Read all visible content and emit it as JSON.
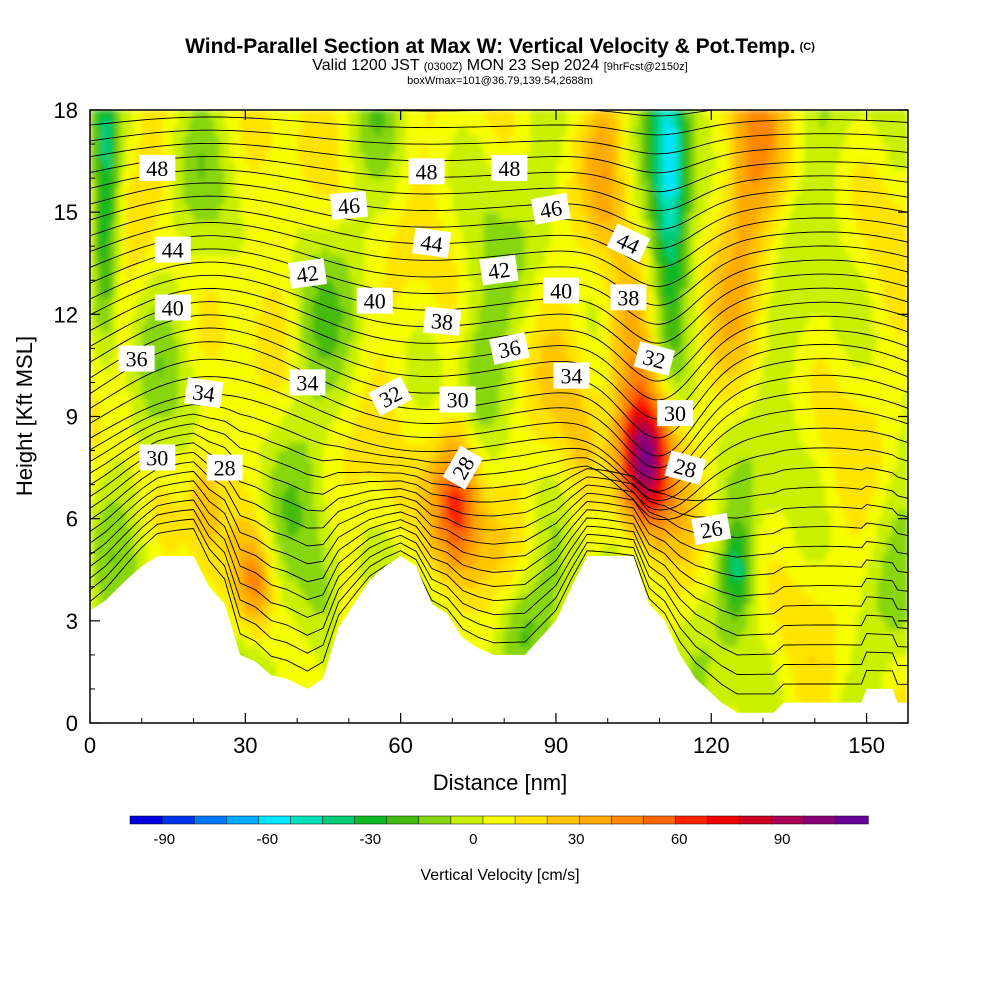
{
  "title": "Wind-Parallel Section at Max W: Vertical Velocity & Pot.Temp.",
  "copyright": "(C)",
  "subtitle_main": "Valid 1200 JST",
  "subtitle_z": "(0300Z)",
  "subtitle_date": "MON 23 Sep 2024",
  "subtitle_fcst": "[9hrFcst@2150z]",
  "subtitle2": "boxWmax=101@36.79,139.54,2688m",
  "chart_data": {
    "type": "heatmap",
    "xlabel": "Distance [nm]",
    "ylabel": "Height [Kft MSL]",
    "xlim": [
      0,
      158
    ],
    "ylim": [
      0,
      18
    ],
    "x_ticks": [
      0,
      30,
      60,
      90,
      120,
      150
    ],
    "y_ticks": [
      0,
      3,
      6,
      9,
      12,
      15,
      18
    ],
    "terrain_top_kft": [
      [
        0,
        3.3
      ],
      [
        3,
        3.6
      ],
      [
        7,
        4.2
      ],
      [
        10,
        4.6
      ],
      [
        13,
        4.9
      ],
      [
        20,
        4.9
      ],
      [
        23,
        4.0
      ],
      [
        26,
        3.5
      ],
      [
        29,
        2.0
      ],
      [
        32,
        1.8
      ],
      [
        35,
        1.4
      ],
      [
        38,
        1.3
      ],
      [
        42,
        1.0
      ],
      [
        45,
        1.3
      ],
      [
        48,
        2.8
      ],
      [
        51,
        3.5
      ],
      [
        54,
        4.2
      ],
      [
        57,
        4.6
      ],
      [
        60,
        4.9
      ],
      [
        63,
        4.6
      ],
      [
        66,
        3.5
      ],
      [
        69,
        3.2
      ],
      [
        72,
        2.5
      ],
      [
        75,
        2.2
      ],
      [
        78,
        2.0
      ],
      [
        84,
        2.0
      ],
      [
        87,
        2.5
      ],
      [
        90,
        3.0
      ],
      [
        93,
        4.0
      ],
      [
        96,
        4.9
      ],
      [
        105,
        4.9
      ],
      [
        108,
        3.5
      ],
      [
        111,
        3.0
      ],
      [
        114,
        2.0
      ],
      [
        117,
        1.3
      ],
      [
        122,
        0.6
      ],
      [
        125,
        0.3
      ],
      [
        132,
        0.3
      ],
      [
        134,
        0.6
      ],
      [
        149,
        0.6
      ],
      [
        150,
        1.0
      ],
      [
        155,
        1.0
      ],
      [
        156,
        0.6
      ],
      [
        158,
        0.6
      ]
    ],
    "vertical_velocity_cells": [
      {
        "x": 71,
        "y": 6.5,
        "sx": 3.5,
        "sy": 1.7,
        "w": 70
      },
      {
        "x": 107,
        "y": 7.8,
        "sx": 3.5,
        "sy": 1.5,
        "w": 101
      },
      {
        "x": 32,
        "y": 4.0,
        "sx": 2.5,
        "sy": 1.1,
        "w": 35
      },
      {
        "x": 22,
        "y": 6.5,
        "sx": 2.0,
        "sy": 1.0,
        "w": 22
      },
      {
        "x": 127,
        "y": 16.0,
        "sx": 4.0,
        "sy": 3.0,
        "w": 30
      },
      {
        "x": 104,
        "y": 11.5,
        "sx": 3.5,
        "sy": 1.5,
        "w": 35
      },
      {
        "x": 95,
        "y": 8.0,
        "sx": 3.0,
        "sy": 2.0,
        "w": 16
      },
      {
        "x": 100,
        "y": 16.5,
        "sx": 2.5,
        "sy": 2.0,
        "w": 18
      },
      {
        "x": 112,
        "y": 16.5,
        "sx": 2.5,
        "sy": 3.5,
        "w": -55
      },
      {
        "x": 3,
        "y": 15.0,
        "sx": 1.8,
        "sy": 3.0,
        "w": -45
      },
      {
        "x": 125,
        "y": 4.5,
        "sx": 2.0,
        "sy": 1.0,
        "w": -35
      },
      {
        "x": 84,
        "y": 3.0,
        "sx": 4.0,
        "sy": 1.2,
        "w": -30
      },
      {
        "x": 45,
        "y": 3.5,
        "sx": 3.0,
        "sy": 1.5,
        "w": -22
      },
      {
        "x": 75,
        "y": 10.5,
        "sx": 3.0,
        "sy": 2.0,
        "w": -18
      },
      {
        "x": 42,
        "y": 11.0,
        "sx": 3.0,
        "sy": 2.0,
        "w": -12
      }
    ],
    "theta_labels": [
      {
        "value": 48,
        "x": 13,
        "y": 16.3,
        "angle": 0
      },
      {
        "value": 48,
        "x": 65,
        "y": 16.2,
        "angle": 0
      },
      {
        "value": 48,
        "x": 81,
        "y": 16.3,
        "angle": 0
      },
      {
        "value": 46,
        "x": 50,
        "y": 15.2,
        "angle": -5
      },
      {
        "value": 46,
        "x": 89,
        "y": 15.1,
        "angle": -10
      },
      {
        "value": 44,
        "x": 16,
        "y": 13.9,
        "angle": 0
      },
      {
        "value": 44,
        "x": 66,
        "y": 14.1,
        "angle": 8
      },
      {
        "value": 44,
        "x": 104,
        "y": 14.1,
        "angle": 25
      },
      {
        "value": 42,
        "x": 42,
        "y": 13.2,
        "angle": -8
      },
      {
        "value": 42,
        "x": 79,
        "y": 13.3,
        "angle": -8
      },
      {
        "value": 40,
        "x": 16,
        "y": 12.2,
        "angle": 0
      },
      {
        "value": 40,
        "x": 55,
        "y": 12.4,
        "angle": 0
      },
      {
        "value": 40,
        "x": 91,
        "y": 12.7,
        "angle": 0
      },
      {
        "value": 38,
        "x": 68,
        "y": 11.8,
        "angle": 5
      },
      {
        "value": 38,
        "x": 104,
        "y": 12.5,
        "angle": 0
      },
      {
        "value": 36,
        "x": 9,
        "y": 10.7,
        "angle": 0
      },
      {
        "value": 36,
        "x": 81,
        "y": 11.0,
        "angle": -12
      },
      {
        "value": 34,
        "x": 22,
        "y": 9.7,
        "angle": 8
      },
      {
        "value": 34,
        "x": 42,
        "y": 10.0,
        "angle": 0
      },
      {
        "value": 34,
        "x": 93,
        "y": 10.2,
        "angle": 0
      },
      {
        "value": 32,
        "x": 58,
        "y": 9.6,
        "angle": -28
      },
      {
        "value": 32,
        "x": 109,
        "y": 10.7,
        "angle": 15
      },
      {
        "value": 30,
        "x": 13,
        "y": 7.8,
        "angle": 0
      },
      {
        "value": 30,
        "x": 71,
        "y": 9.5,
        "angle": 0
      },
      {
        "value": 30,
        "x": 113,
        "y": 9.1,
        "angle": 0
      },
      {
        "value": 28,
        "x": 26,
        "y": 7.5,
        "angle": 0
      },
      {
        "value": 28,
        "x": 72,
        "y": 7.5,
        "angle": -60
      },
      {
        "value": 28,
        "x": 115,
        "y": 7.5,
        "angle": 15
      },
      {
        "value": 26,
        "x": 120,
        "y": 5.7,
        "angle": -10
      }
    ],
    "colorbar": {
      "title": "Vertical Velocity [cm/s]",
      "ticks": [
        -90,
        -60,
        -30,
        0,
        30,
        60,
        90
      ],
      "colors": [
        "#0000dd",
        "#0033ee",
        "#0077ff",
        "#00aaff",
        "#00e5ff",
        "#00e0bb",
        "#00cc77",
        "#11b922",
        "#44bb11",
        "#88d611",
        "#c8f000",
        "#f5ff00",
        "#ffe400",
        "#ffc600",
        "#ffaa00",
        "#ff8800",
        "#ff6600",
        "#ff2200",
        "#ee0000",
        "#cc0022",
        "#aa0055",
        "#880077",
        "#660099"
      ],
      "vmin": -100,
      "vmax": 115
    }
  }
}
